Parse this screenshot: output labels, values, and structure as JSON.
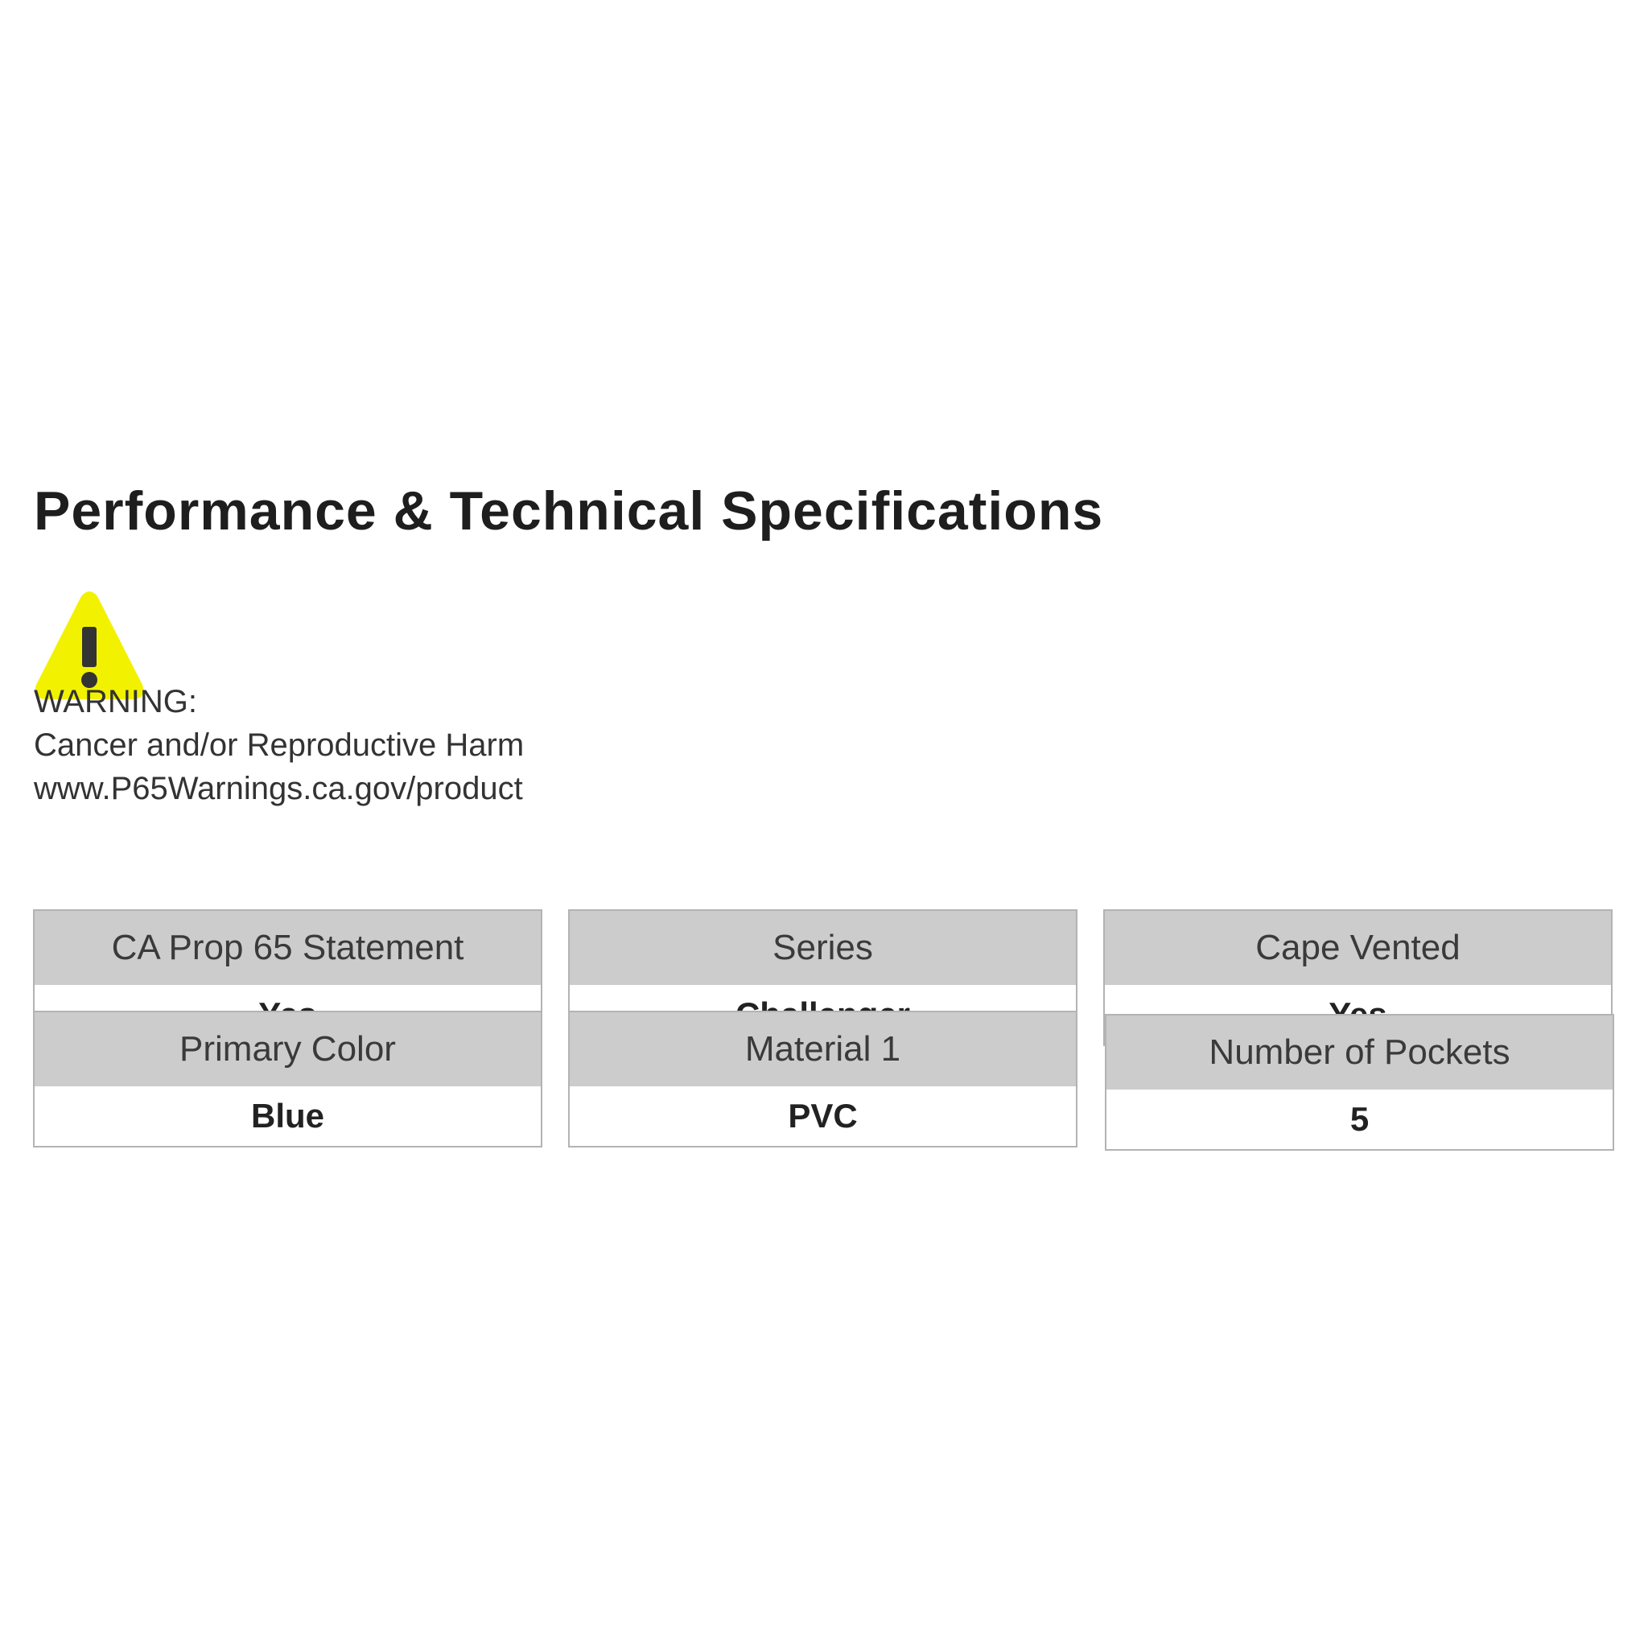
{
  "title": "Performance & Technical Specifications",
  "warning": {
    "icon": "warning-triangle-icon",
    "icon_color": "#f2f200",
    "label": "WARNING:",
    "message": "Cancer and/or Reproductive Harm",
    "link": "www.P65Warnings.ca.gov/product"
  },
  "specs": [
    {
      "label": "CA Prop 65 Statement",
      "value": "Yes"
    },
    {
      "label": "Series",
      "value": "Challenger"
    },
    {
      "label": "Cape Vented",
      "value": "Yes"
    },
    {
      "label": "Primary Color",
      "value": "Blue"
    },
    {
      "label": "Material 1",
      "value": "PVC"
    },
    {
      "label": "Number of Pockets",
      "value": "5"
    }
  ]
}
